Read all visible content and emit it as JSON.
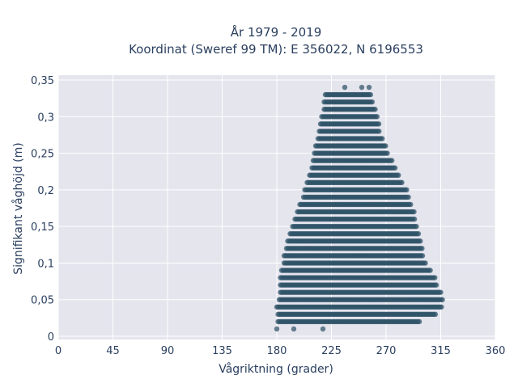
{
  "chart_data": {
    "type": "scatter",
    "title": "År 1979 - 2019",
    "subtitle": "Koordinat (Sweref 99 TM): E 356022, N 6196553",
    "xlabel": "Vågriktning (grader)",
    "ylabel": "Signifikant våghöjd (m)",
    "xlim": [
      0,
      360
    ],
    "ylim": [
      0,
      0.35
    ],
    "x_ticks": [
      0,
      45,
      90,
      135,
      180,
      225,
      270,
      315,
      360
    ],
    "x_tick_labels": [
      "0",
      "45",
      "90",
      "135",
      "180",
      "225",
      "270",
      "315",
      "360"
    ],
    "y_ticks": [
      0,
      0.05,
      0.1,
      0.15,
      0.2,
      0.25,
      0.3,
      0.35
    ],
    "y_tick_labels": [
      "0",
      "0,05",
      "0,1",
      "0,15",
      "0,2",
      "0,25",
      "0,3",
      "0,35"
    ],
    "grid": true,
    "marker_color": "#2e5266",
    "background_color": "#e5e5ee",
    "bands": [
      {
        "y": 0.01,
        "x_ranges": [
          [
            180,
            180
          ],
          [
            194,
            194
          ],
          [
            218,
            218
          ]
        ]
      },
      {
        "y": 0.02,
        "x_ranges": [
          [
            181,
            298
          ]
        ]
      },
      {
        "y": 0.03,
        "x_ranges": [
          [
            181,
            311
          ]
        ]
      },
      {
        "y": 0.04,
        "x_ranges": [
          [
            180,
            316
          ]
        ]
      },
      {
        "y": 0.05,
        "x_ranges": [
          [
            182,
            317
          ]
        ]
      },
      {
        "y": 0.06,
        "x_ranges": [
          [
            183,
            315
          ]
        ]
      },
      {
        "y": 0.07,
        "x_ranges": [
          [
            183,
            312
          ]
        ]
      },
      {
        "y": 0.08,
        "x_ranges": [
          [
            183,
            311
          ]
        ]
      },
      {
        "y": 0.09,
        "x_ranges": [
          [
            184,
            307
          ]
        ]
      },
      {
        "y": 0.1,
        "x_ranges": [
          [
            186,
            303
          ]
        ]
      },
      {
        "y": 0.11,
        "x_ranges": [
          [
            186,
            301
          ]
        ]
      },
      {
        "y": 0.12,
        "x_ranges": [
          [
            188,
            300
          ]
        ]
      },
      {
        "y": 0.13,
        "x_ranges": [
          [
            189,
            299
          ]
        ]
      },
      {
        "y": 0.14,
        "x_ranges": [
          [
            191,
            297
          ]
        ]
      },
      {
        "y": 0.15,
        "x_ranges": [
          [
            193,
            295
          ]
        ]
      },
      {
        "y": 0.16,
        "x_ranges": [
          [
            195,
            294
          ]
        ]
      },
      {
        "y": 0.17,
        "x_ranges": [
          [
            197,
            293
          ]
        ]
      },
      {
        "y": 0.18,
        "x_ranges": [
          [
            199,
            291
          ]
        ]
      },
      {
        "y": 0.19,
        "x_ranges": [
          [
            202,
            289
          ]
        ]
      },
      {
        "y": 0.2,
        "x_ranges": [
          [
            203,
            287
          ]
        ]
      },
      {
        "y": 0.21,
        "x_ranges": [
          [
            205,
            284
          ]
        ]
      },
      {
        "y": 0.22,
        "x_ranges": [
          [
            207,
            281
          ]
        ]
      },
      {
        "y": 0.23,
        "x_ranges": [
          [
            209,
            278
          ]
        ]
      },
      {
        "y": 0.24,
        "x_ranges": [
          [
            210,
            275
          ]
        ]
      },
      {
        "y": 0.25,
        "x_ranges": [
          [
            211,
            272
          ]
        ]
      },
      {
        "y": 0.26,
        "x_ranges": [
          [
            212,
            270
          ]
        ]
      },
      {
        "y": 0.27,
        "x_ranges": [
          [
            214,
            267
          ]
        ]
      },
      {
        "y": 0.28,
        "x_ranges": [
          [
            215,
            265
          ]
        ]
      },
      {
        "y": 0.29,
        "x_ranges": [
          [
            216,
            264
          ]
        ]
      },
      {
        "y": 0.3,
        "x_ranges": [
          [
            217,
            263
          ]
        ]
      },
      {
        "y": 0.31,
        "x_ranges": [
          [
            219,
            261
          ]
        ]
      },
      {
        "y": 0.32,
        "x_ranges": [
          [
            219,
            259
          ]
        ]
      },
      {
        "y": 0.33,
        "x_ranges": [
          [
            220,
            258
          ]
        ]
      },
      {
        "y": 0.34,
        "x_ranges": [
          [
            236,
            236
          ],
          [
            250,
            250
          ],
          [
            256,
            256
          ]
        ]
      }
    ]
  }
}
